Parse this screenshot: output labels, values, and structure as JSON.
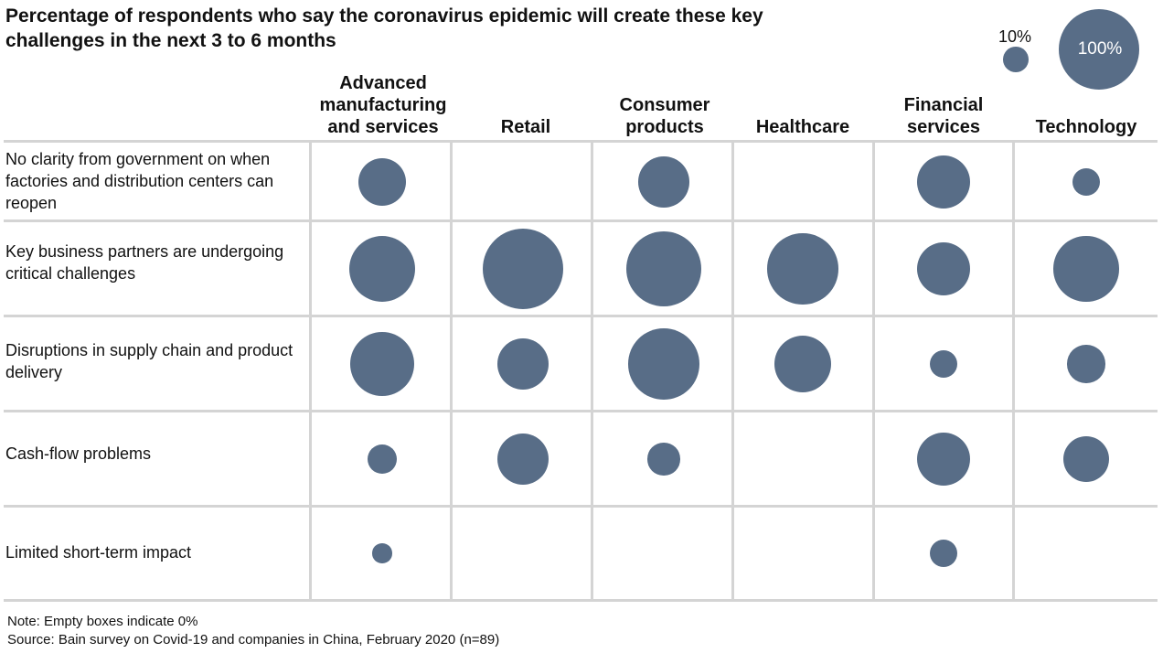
{
  "chart_data": {
    "type": "bubble-matrix",
    "title": "Percentage of respondents who say the coronavirus epidemic will create these key challenges in the next 3 to 6 months",
    "legend": [
      {
        "label": "10%",
        "value": 10
      },
      {
        "label": "100%",
        "value": 100
      }
    ],
    "columns": [
      "Advanced manufacturing and services",
      "Retail",
      "Consumer products",
      "Healthcare",
      "Financial services",
      "Technology"
    ],
    "rows": [
      {
        "label": "No clarity from government on when factories and distribution centers can reopen",
        "values": [
          36,
          0,
          40,
          0,
          44,
          12
        ]
      },
      {
        "label": "Key business partners are undergoing critical challenges",
        "values": [
          68,
          100,
          87,
          77,
          44,
          66
        ]
      },
      {
        "label": "Disruptions in supply chain and product delivery",
        "values": [
          63,
          41,
          78,
          51,
          12,
          22
        ]
      },
      {
        "label": "Cash-flow problems",
        "values": [
          14,
          41,
          16,
          0,
          44,
          33
        ]
      },
      {
        "label": "Limited short-term impact",
        "values": [
          6,
          0,
          0,
          0,
          12,
          0
        ]
      }
    ]
  },
  "notes": {
    "note": "Note: Empty boxes indicate 0%",
    "source": "Source: Bain survey on Covid-19 and companies in China, February 2020 (n=89)"
  }
}
